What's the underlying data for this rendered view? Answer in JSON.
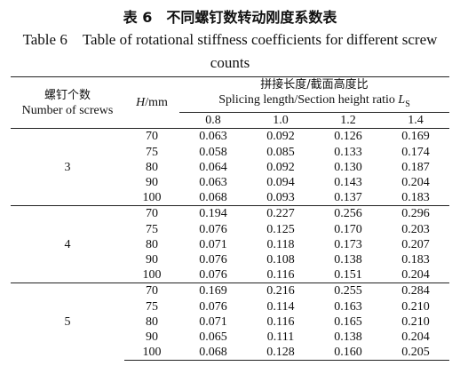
{
  "caption": {
    "zh": "表 6　不同螺钉数转动刚度系数表",
    "en": "Table 6　Table of rotational stiffness coefficients for different screw counts"
  },
  "table": {
    "header": {
      "screws_zh": "螺钉个数",
      "screws_en": "Number of screws",
      "h_symbol": "H",
      "h_unit": "/mm",
      "ratio_zh": "拼接长度/截面高度比",
      "ratio_en": "Splicing length/Section height ratio",
      "ratio_symbol": "L",
      "ratio_sub": "S",
      "ratios": [
        "0.8",
        "1.0",
        "1.2",
        "1.4"
      ]
    },
    "groups": [
      {
        "screws": "3",
        "rows": [
          {
            "h": "70",
            "values": [
              "0.063",
              "0.092",
              "0.126",
              "0.169"
            ]
          },
          {
            "h": "75",
            "values": [
              "0.058",
              "0.085",
              "0.133",
              "0.174"
            ]
          },
          {
            "h": "80",
            "values": [
              "0.064",
              "0.092",
              "0.130",
              "0.187"
            ]
          },
          {
            "h": "90",
            "values": [
              "0.063",
              "0.094",
              "0.143",
              "0.204"
            ]
          },
          {
            "h": "100",
            "values": [
              "0.068",
              "0.093",
              "0.137",
              "0.183"
            ]
          }
        ]
      },
      {
        "screws": "4",
        "rows": [
          {
            "h": "70",
            "values": [
              "0.194",
              "0.227",
              "0.256",
              "0.296"
            ]
          },
          {
            "h": "75",
            "values": [
              "0.076",
              "0.125",
              "0.170",
              "0.203"
            ]
          },
          {
            "h": "80",
            "values": [
              "0.071",
              "0.118",
              "0.173",
              "0.207"
            ]
          },
          {
            "h": "90",
            "values": [
              "0.076",
              "0.108",
              "0.138",
              "0.183"
            ]
          },
          {
            "h": "100",
            "values": [
              "0.076",
              "0.116",
              "0.151",
              "0.204"
            ]
          }
        ]
      },
      {
        "screws": "5",
        "rows": [
          {
            "h": "70",
            "values": [
              "0.169",
              "0.216",
              "0.255",
              "0.284"
            ]
          },
          {
            "h": "75",
            "values": [
              "0.076",
              "0.114",
              "0.163",
              "0.210"
            ]
          },
          {
            "h": "80",
            "values": [
              "0.071",
              "0.116",
              "0.165",
              "0.210"
            ]
          },
          {
            "h": "90",
            "values": [
              "0.065",
              "0.111",
              "0.138",
              "0.204"
            ]
          },
          {
            "h": "100",
            "values": [
              "0.068",
              "0.128",
              "0.160",
              "0.205"
            ]
          }
        ]
      }
    ]
  }
}
